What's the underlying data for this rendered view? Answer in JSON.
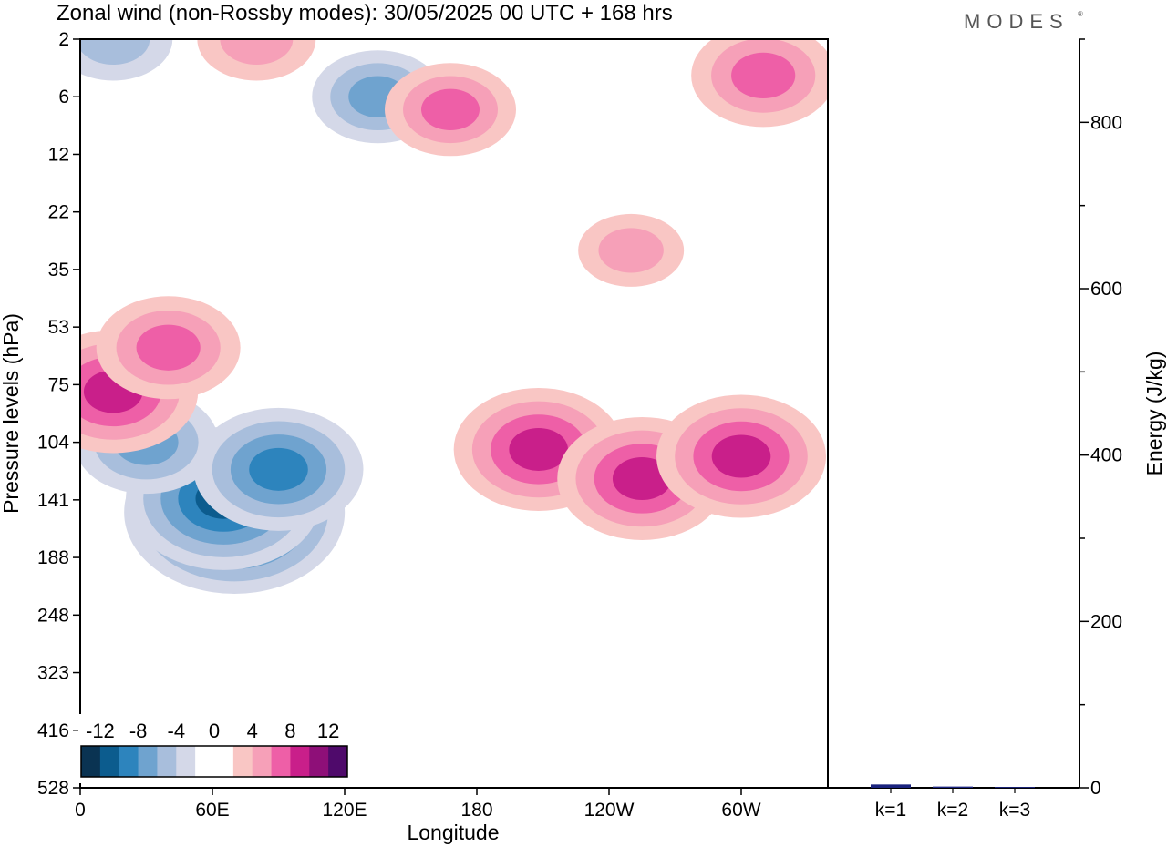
{
  "title": "Zonal wind (non-Rossby modes):  30/05/2025  00 UTC  + 168 hrs",
  "logo": {
    "text": "MODES",
    "mark": "®"
  },
  "colors": {
    "neg": [
      "#0a3352",
      "#0c5c8e",
      "#2d84bd",
      "#6fa3cf",
      "#a8bedc",
      "#d4d8e8"
    ],
    "pos": [
      "#f9c6c4",
      "#f6a0b8",
      "#ee5fa7",
      "#c91f8a",
      "#8e0f78",
      "#4f0a6b"
    ],
    "bar": "#1a237e"
  },
  "chart_data": [
    {
      "type": "heatmap",
      "variable": "Zonal wind (non-Rossby modes)",
      "xlabel": "Longitude",
      "ylabel": "Pressure levels (hPa)",
      "x_ticks": [
        "0",
        "60E",
        "120E",
        "180",
        "120W",
        "60W"
      ],
      "y_ticks": [
        "2",
        "6",
        "12",
        "22",
        "35",
        "53",
        "75",
        "104",
        "141",
        "188",
        "248",
        "323",
        "416",
        "528"
      ],
      "colorbar": {
        "labels": [
          "-12",
          "-8",
          "-4",
          "0",
          "4",
          "8",
          "12"
        ],
        "levels": [
          -14,
          -12,
          -10,
          -8,
          -6,
          -4,
          -2,
          2,
          4,
          6,
          8,
          10,
          12,
          14
        ]
      },
      "features": [
        {
          "lon": 70,
          "level": 150,
          "value": -13
        },
        {
          "lon": 65,
          "level": 140,
          "value": -11
        },
        {
          "lon": 30,
          "level": 104,
          "value": -7
        },
        {
          "lon": 90,
          "level": 120,
          "value": -9
        },
        {
          "lon": 15,
          "level": 2,
          "value": -5
        },
        {
          "lon": 135,
          "level": 6,
          "value": -6
        },
        {
          "lon": 15,
          "level": 78,
          "value": 9
        },
        {
          "lon": 40,
          "level": 60,
          "value": 7
        },
        {
          "lon": 80,
          "level": 2,
          "value": 5
        },
        {
          "lon": 168,
          "level": 7,
          "value": 6
        },
        {
          "lon": 310,
          "level": 4,
          "value": 7
        },
        {
          "lon": 208,
          "level": 108,
          "value": 9
        },
        {
          "lon": 255,
          "level": 126,
          "value": 9
        },
        {
          "lon": 300,
          "level": 112,
          "value": 9
        },
        {
          "lon": 250,
          "level": 30,
          "value": 4
        }
      ]
    },
    {
      "type": "bar",
      "categories": [
        "k=1",
        "k=2",
        "k=3"
      ],
      "values": [
        4,
        1.5,
        1
      ],
      "ylabel": "Energy (J/kg)",
      "ylim": [
        0,
        900
      ],
      "y_ticks": [
        "0",
        "200",
        "400",
        "600",
        "800"
      ]
    }
  ]
}
